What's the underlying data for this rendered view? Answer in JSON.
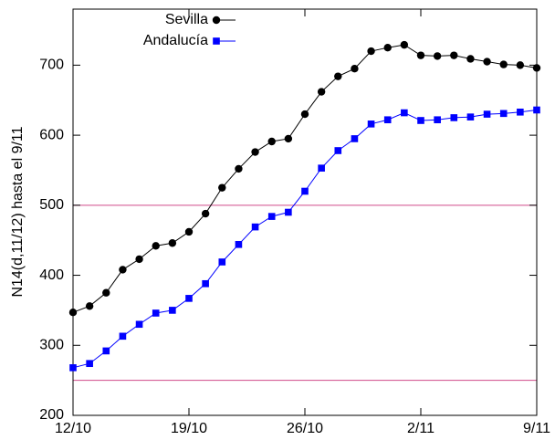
{
  "chart_data": {
    "type": "line",
    "ylabel": "N14(d,11/12) hasta el 9/11",
    "categories": [
      "12/10",
      null,
      null,
      null,
      null,
      null,
      null,
      "19/10",
      null,
      null,
      null,
      null,
      null,
      null,
      "26/10",
      null,
      null,
      null,
      null,
      null,
      null,
      "2/11",
      null,
      null,
      null,
      null,
      null,
      null,
      "9/11"
    ],
    "series": [
      {
        "name": "Sevilla",
        "color": "#000000",
        "marker": "circle",
        "values": [
          347,
          356,
          375,
          408,
          423,
          442,
          446,
          462,
          488,
          525,
          552,
          576,
          591,
          595,
          630,
          662,
          684,
          695,
          720,
          725,
          729,
          714,
          713,
          714,
          709,
          705,
          701,
          700,
          696
        ]
      },
      {
        "name": "Andalucía",
        "color": "#0000ff",
        "marker": "square",
        "values": [
          268,
          274,
          292,
          313,
          330,
          346,
          350,
          367,
          388,
          419,
          444,
          469,
          484,
          490,
          520,
          553,
          578,
          595,
          616,
          622,
          632,
          621,
          622,
          625,
          626,
          630,
          631,
          633,
          636
        ]
      }
    ],
    "ylim": [
      200,
      780
    ],
    "yticks": [
      200,
      300,
      400,
      500,
      600,
      700
    ],
    "hlines": [
      500,
      250
    ],
    "hline_color": "#d04a8a",
    "legend": "top"
  }
}
